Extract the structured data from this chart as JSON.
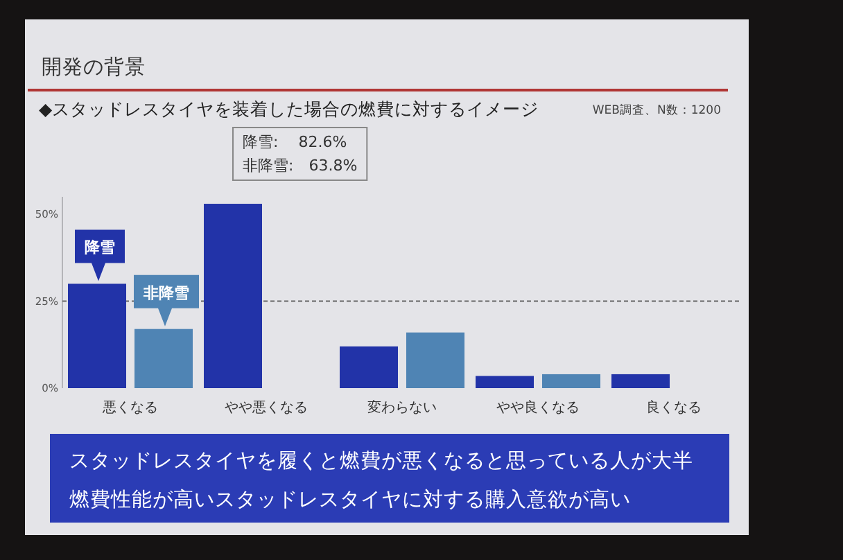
{
  "chart_data": {
    "type": "bar",
    "title": "開発の背景",
    "subtitle": "◆スタッドレスタイヤを装着した場合の燃費に対するイメージ",
    "categories": [
      "悪くなる",
      "やや悪くなる",
      "変わらない",
      "やや良くなる",
      "良くなる"
    ],
    "series": [
      {
        "name": "降雪",
        "color": "#2233a8",
        "values": [
          30,
          53,
          12,
          3.5,
          4
        ]
      },
      {
        "name": "非降雪",
        "color": "#4f84b4",
        "values": [
          17,
          null,
          16,
          4,
          null
        ]
      }
    ],
    "ylim": [
      0,
      55
    ],
    "yticks": [
      {
        "value": 0,
        "label": "0%"
      },
      {
        "value": 25,
        "label": "25%"
      },
      {
        "value": 50,
        "label": "50%"
      }
    ],
    "ref_lines": [
      {
        "axis": "y",
        "value": 25,
        "color": "#666666",
        "line_style": "dashed"
      }
    ],
    "annotations": [
      "降雪:　 82.6%",
      "非降雪:　63.8%",
      "WEB調査、N数：1200",
      "スタッドレスタイヤを履くと燃費が悪くなると思っている人が大半",
      "燃費性能が高いスタッドレスタイヤに対する購入意欲が高い"
    ]
  }
}
